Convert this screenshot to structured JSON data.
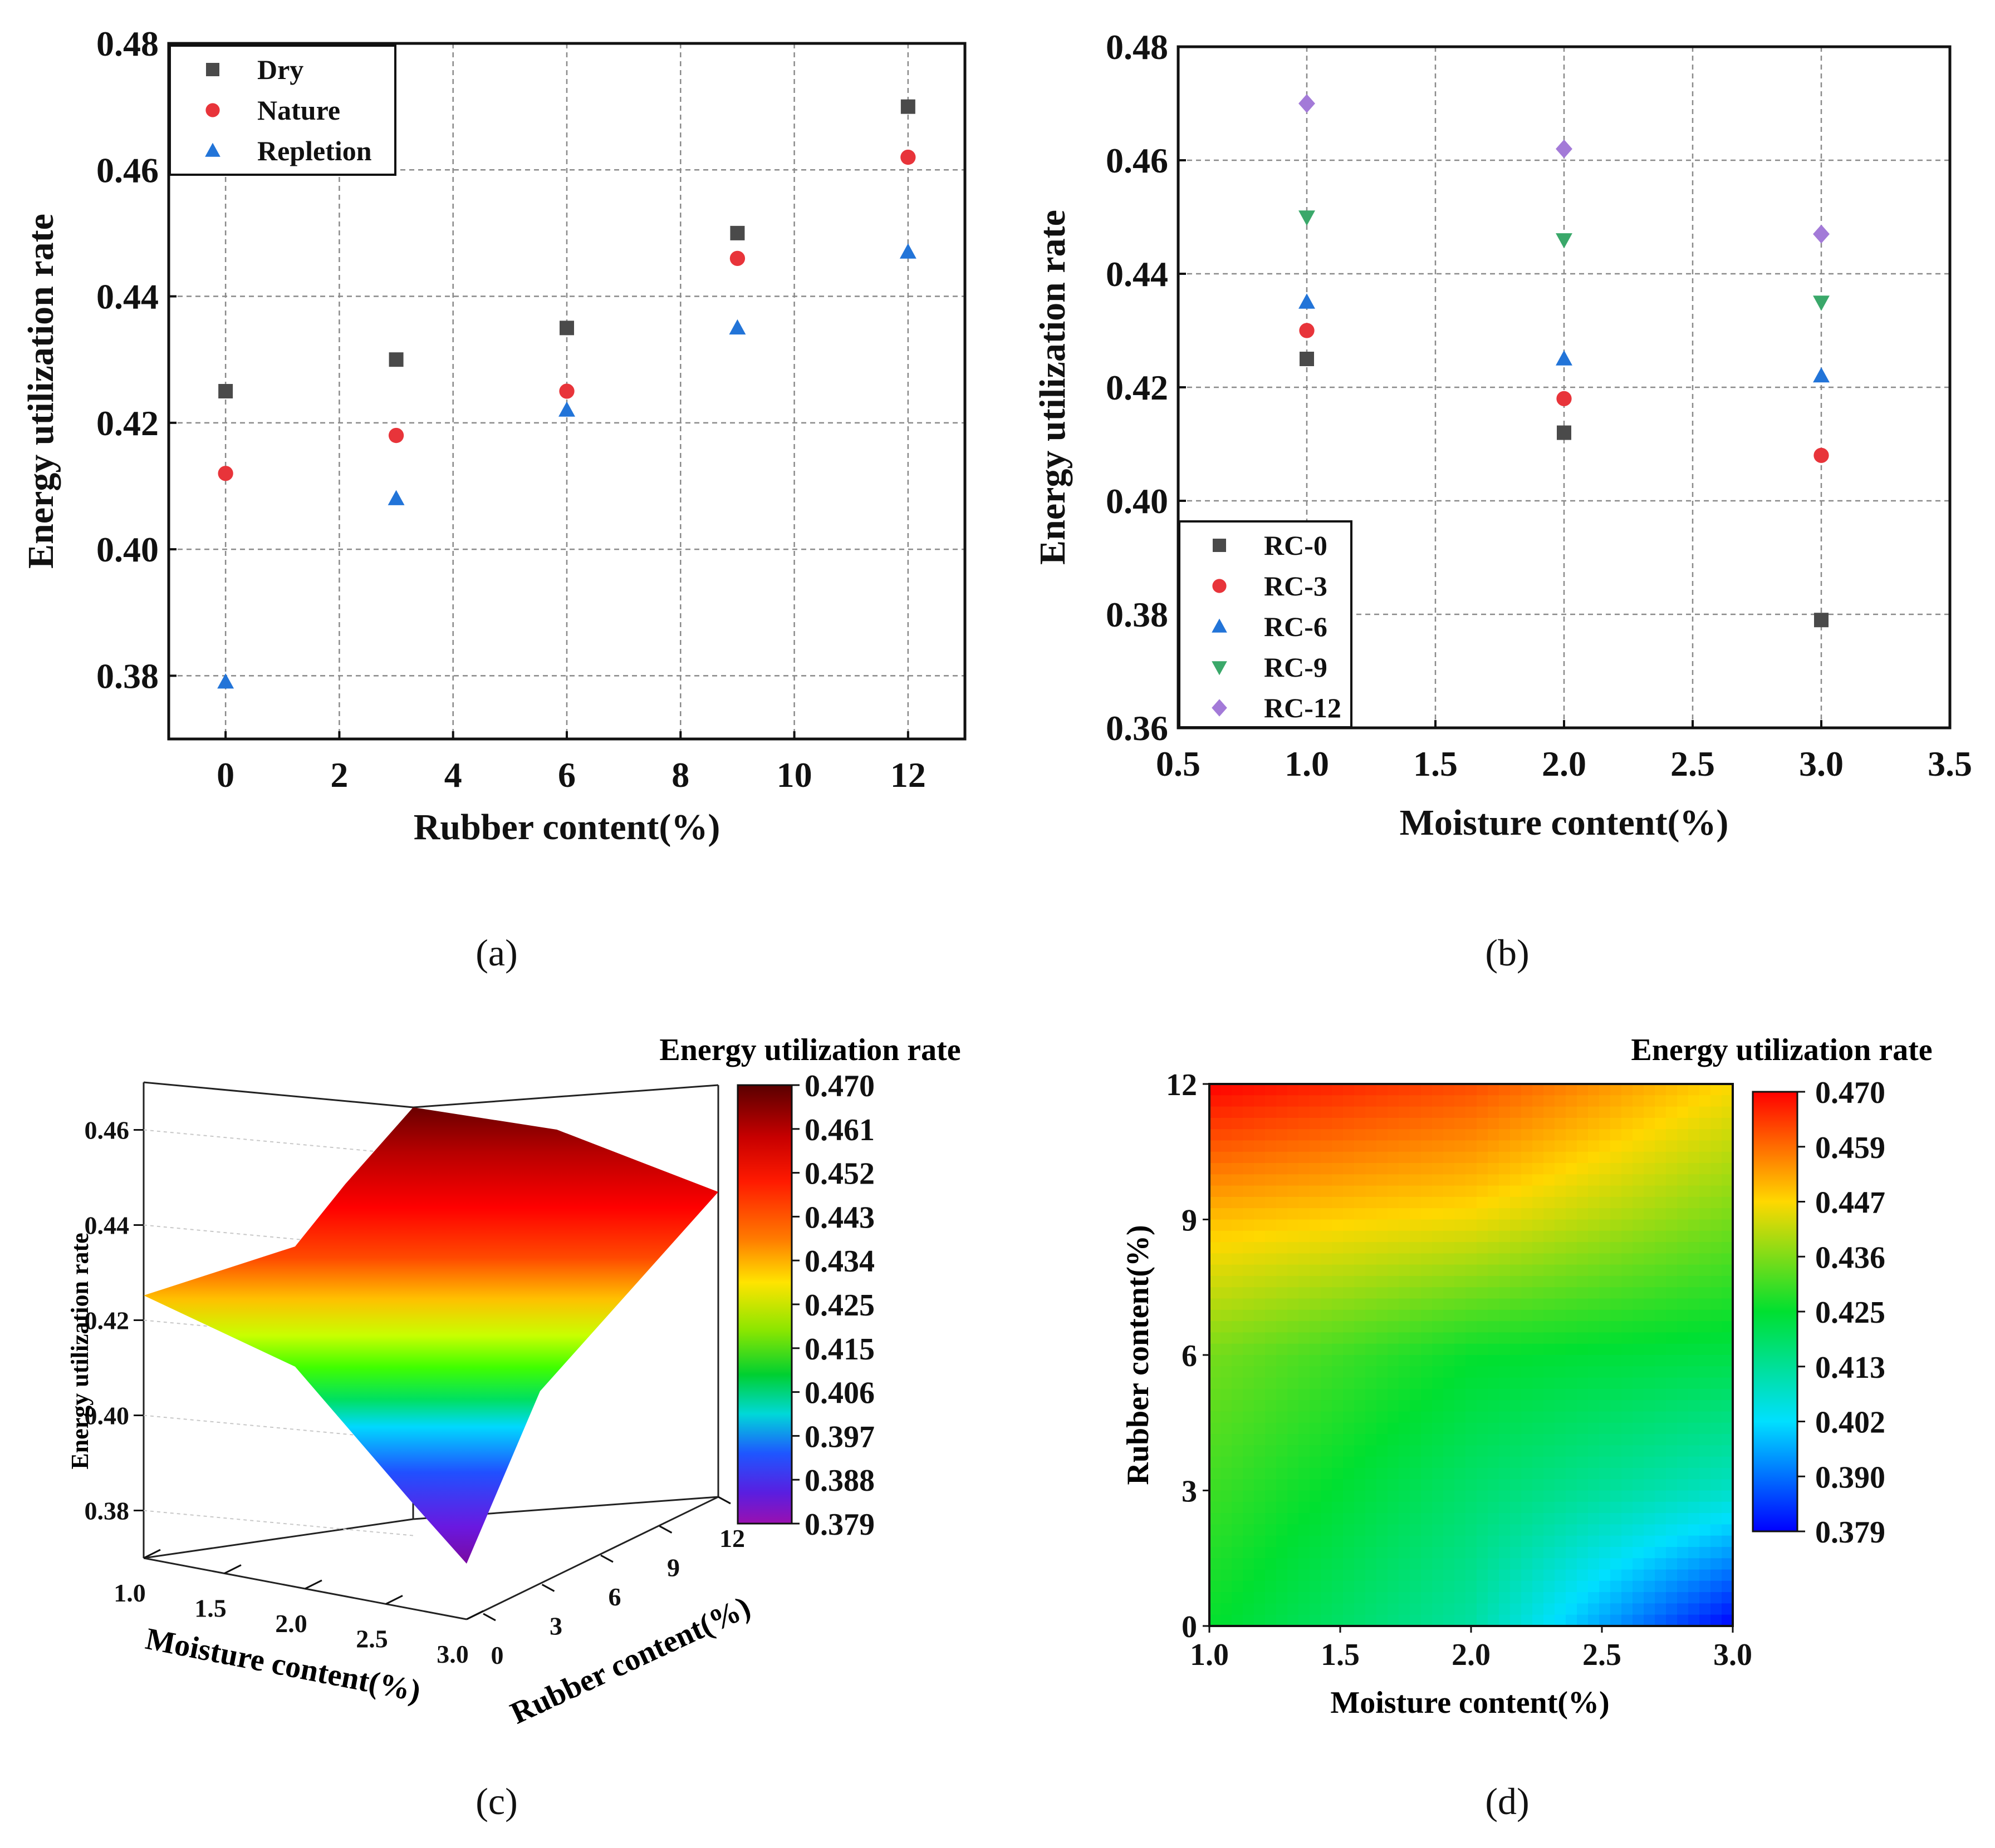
{
  "chart_data": [
    {
      "panel": "a",
      "type": "scatter",
      "caption": "(a)",
      "xlabel": "Rubber content(%)",
      "ylabel": "Energy utilization rate",
      "xlim": [
        -1,
        13
      ],
      "ylim": [
        0.37,
        0.48
      ],
      "xticks": [
        "0",
        "2",
        "4",
        "6",
        "8",
        "10",
        "12"
      ],
      "yticks": [
        "0.38",
        "0.40",
        "0.42",
        "0.44",
        "0.46",
        "0.48"
      ],
      "legend_position": "top-left",
      "x": [
        0,
        3,
        6,
        9,
        12
      ],
      "series": [
        {
          "name": "Dry",
          "marker": "square",
          "color": "#4a4a4a",
          "values": [
            0.425,
            0.43,
            0.435,
            0.45,
            0.47
          ]
        },
        {
          "name": "Nature",
          "marker": "circle",
          "color": "#e8343a",
          "values": [
            0.412,
            0.418,
            0.425,
            0.446,
            0.462
          ]
        },
        {
          "name": "Repletion",
          "marker": "triangle-up",
          "color": "#2274d8",
          "values": [
            0.379,
            0.408,
            0.422,
            0.435,
            0.447
          ]
        }
      ]
    },
    {
      "panel": "b",
      "type": "scatter",
      "caption": "(b)",
      "xlabel": "Moisture content(%)",
      "ylabel": "Energy utilization rate",
      "xlim": [
        0.5,
        3.5
      ],
      "ylim": [
        0.36,
        0.48
      ],
      "xticks": [
        "0.5",
        "1.0",
        "1.5",
        "2.0",
        "2.5",
        "3.0",
        "3.5"
      ],
      "yticks": [
        "0.36",
        "0.38",
        "0.40",
        "0.42",
        "0.44",
        "0.46",
        "0.48"
      ],
      "legend_position": "bottom-left",
      "x": [
        1.0,
        2.0,
        3.0
      ],
      "series": [
        {
          "name": "RC-0",
          "marker": "square",
          "color": "#4a4a4a",
          "values": [
            0.425,
            0.412,
            0.379
          ]
        },
        {
          "name": "RC-3",
          "marker": "circle",
          "color": "#e8343a",
          "values": [
            0.43,
            0.418,
            0.408
          ]
        },
        {
          "name": "RC-6",
          "marker": "triangle-up",
          "color": "#2274d8",
          "values": [
            0.435,
            0.425,
            0.422
          ]
        },
        {
          "name": "RC-9",
          "marker": "triangle-down",
          "color": "#3aa86a",
          "values": [
            0.45,
            0.446,
            0.435
          ]
        },
        {
          "name": "RC-12",
          "marker": "diamond",
          "color": "#a37ad8",
          "values": [
            0.47,
            0.462,
            0.447
          ]
        }
      ]
    },
    {
      "panel": "c",
      "type": "surface3d",
      "caption": "(c)",
      "title": "Energy utilization rate",
      "zlabel": "Energy utilization rate",
      "xlabel": "Moisture content(%)",
      "ylabel": "Rubber content(%)",
      "xticks": [
        "1.0",
        "1.5",
        "2.0",
        "2.5",
        "3.0"
      ],
      "yticks": [
        "0",
        "3",
        "6",
        "9",
        "12"
      ],
      "zticks": [
        "0.38",
        "0.40",
        "0.42",
        "0.44",
        "0.46"
      ],
      "colorbar_ticks": [
        "0.470",
        "0.461",
        "0.452",
        "0.443",
        "0.434",
        "0.425",
        "0.415",
        "0.406",
        "0.397",
        "0.388",
        "0.379"
      ],
      "grid_values": {
        "moisture": [
          1.0,
          2.0,
          3.0
        ],
        "rubber": [
          0,
          12
        ],
        "z": [
          [
            0.425,
            0.47
          ],
          [
            0.412,
            0.462
          ],
          [
            0.379,
            0.447
          ]
        ]
      }
    },
    {
      "panel": "d",
      "type": "heatmap",
      "caption": "(d)",
      "title": "Energy utilization rate",
      "xlabel": "Moisture content(%)",
      "ylabel": "Rubber content(%)",
      "xlim": [
        1.0,
        3.0
      ],
      "ylim": [
        0,
        12
      ],
      "xticks": [
        "1.0",
        "1.5",
        "2.0",
        "2.5",
        "3.0"
      ],
      "yticks": [
        "0",
        "3",
        "6",
        "9",
        "12"
      ],
      "colorbar_ticks": [
        "0.470",
        "0.459",
        "0.447",
        "0.436",
        "0.425",
        "0.413",
        "0.402",
        "0.390",
        "0.379"
      ],
      "moisture": [
        1.0,
        2.0,
        3.0
      ],
      "rubber": [
        0,
        3,
        6,
        9,
        12
      ],
      "z": [
        [
          0.425,
          0.412,
          0.379
        ],
        [
          0.43,
          0.418,
          0.408
        ],
        [
          0.435,
          0.425,
          0.422
        ],
        [
          0.45,
          0.446,
          0.435
        ],
        [
          0.47,
          0.462,
          0.447
        ]
      ],
      "zrange": [
        0.379,
        0.47
      ]
    }
  ]
}
